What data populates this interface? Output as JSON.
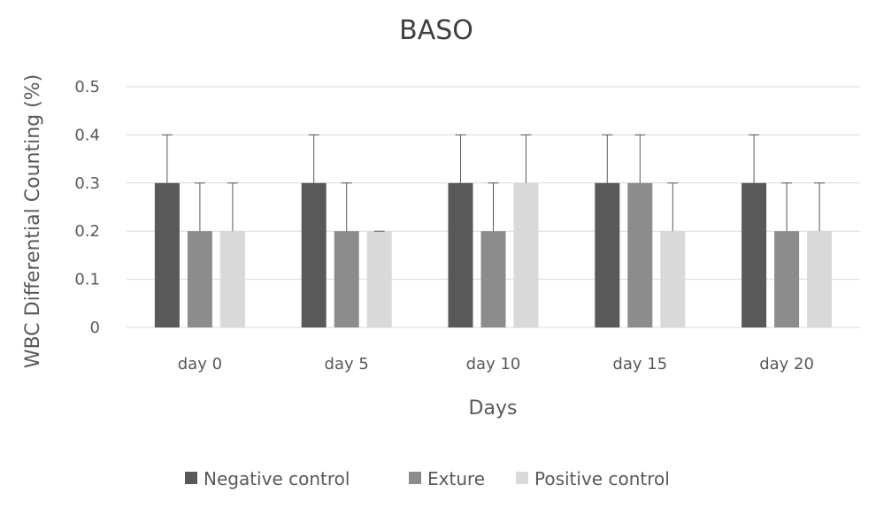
{
  "chart_data": {
    "type": "bar",
    "title": "BASO",
    "xlabel": "Days",
    "ylabel": "WBC Differential Counting (%)",
    "categories": [
      "day 0",
      "day 5",
      "day 10",
      "day 15",
      "day 20"
    ],
    "ylim": [
      0,
      0.5
    ],
    "yticks": [
      "0",
      "0.1",
      "0.2",
      "0.3",
      "0.4",
      "0.5"
    ],
    "grid": true,
    "legend_position": "bottom",
    "series": [
      {
        "name": "Negative control",
        "color": "#595959",
        "values": [
          0.3,
          0.3,
          0.3,
          0.3,
          0.3
        ],
        "error_upper": [
          0.4,
          0.4,
          0.4,
          0.4,
          0.4
        ]
      },
      {
        "name": "Exture",
        "color": "#8c8c8c",
        "values": [
          0.2,
          0.2,
          0.2,
          0.3,
          0.2
        ],
        "error_upper": [
          0.3,
          0.3,
          0.3,
          0.4,
          0.3
        ]
      },
      {
        "name": "Positive control",
        "color": "#d9d9d9",
        "values": [
          0.2,
          0.2,
          0.3,
          0.2,
          0.2
        ],
        "error_upper": [
          0.3,
          0.2,
          0.4,
          0.3,
          0.3
        ]
      }
    ]
  }
}
